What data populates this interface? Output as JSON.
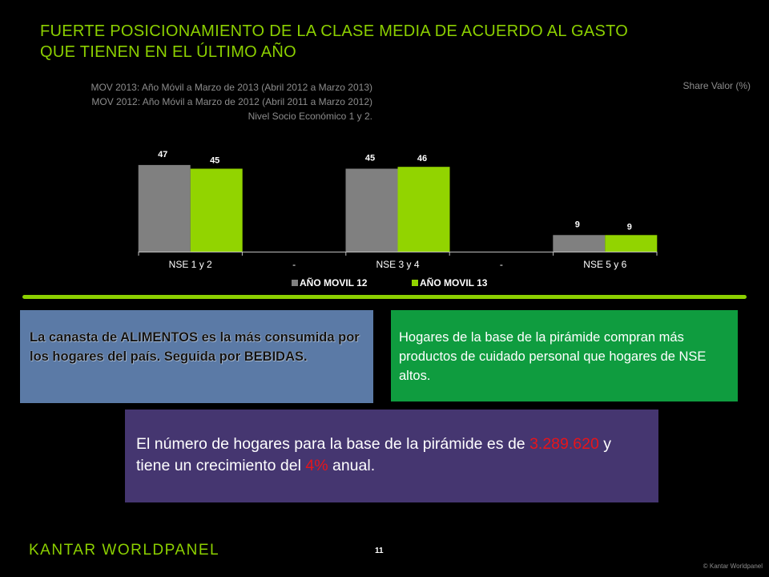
{
  "title_line1": "FUERTE POSICIONAMIENTO DE LA CLASE MEDIA DE ACUERDO AL GASTO",
  "title_line2": "QUE TIENEN EN EL ÚLTIMO AÑO",
  "notes": [
    "MOV 2013: Año Móvil a Marzo de 2013 (Abril 2012 a Marzo 2013)",
    "MOV 2012: Año Móvil a Marzo de 2012 (Abril 2011 a Marzo 2012)",
    "Nivel Socio Económico 1 y 2."
  ],
  "share_label": "Share Valor (%)",
  "chart_data": {
    "type": "bar",
    "categories": [
      "NSE 1 y 2",
      "-",
      "NSE 3 y 4",
      "-",
      "NSE 5 y 6"
    ],
    "series": [
      {
        "name": "AÑO MOVIL 12",
        "values": [
          47,
          null,
          45,
          null,
          9
        ],
        "color": "#808080"
      },
      {
        "name": "AÑO MOVIL 13",
        "values": [
          45,
          null,
          46,
          null,
          9
        ],
        "color": "#92d400"
      }
    ],
    "ylim": [
      0,
      50
    ],
    "grid": false,
    "legend_position": "bottom"
  },
  "box_blue": {
    "p1": "La canasta de ",
    "b1": "ALIMENTOS",
    "p2": " es la más consumida por los hogares del país. Seguida por ",
    "b2": "BEBIDAS",
    "p3": "."
  },
  "box_green": "Hogares de la base de la pirámide compran más productos de cuidado personal que hogares de NSE altos.",
  "box_purple": {
    "p1": "El número de hogares para la base de la pirámide es de ",
    "v1": "3.289.620",
    "p2": " y tiene un crecimiento del ",
    "v2": "4%",
    "p3": " anual."
  },
  "logo": "KANTAR WORLDPANEL",
  "page_number": "11",
  "copyright": "© Kantar Worldpanel",
  "colors": {
    "accent": "#8cd000",
    "highlight": "#e8141a"
  }
}
